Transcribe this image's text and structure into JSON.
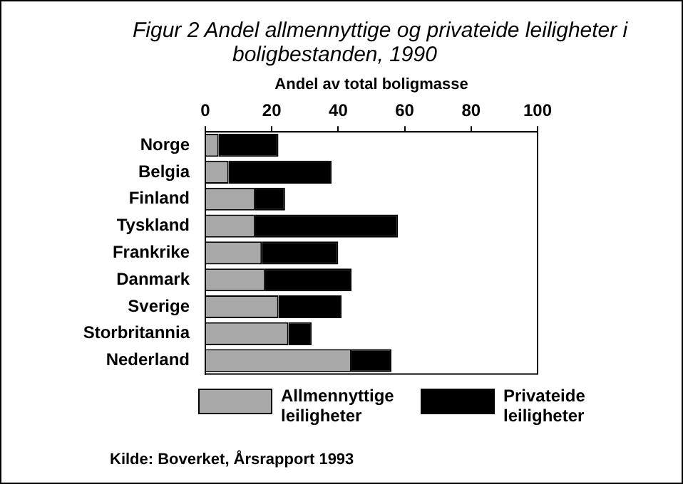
{
  "chart_data": {
    "type": "bar",
    "orientation": "horizontal",
    "stacked": true,
    "title": "Figur 2   Andel allmennyttige og privateide leiligheter i boligbestanden, 1990",
    "xlabel": "Andel av total boligmasse",
    "categories": [
      "Norge",
      "Belgia",
      "Finland",
      "Tyskland",
      "Frankrike",
      "Danmark",
      "Sverige",
      "Storbritannia",
      "Nederland"
    ],
    "series": [
      {
        "name": "Allmennyttige leiligheter",
        "color": "#a8a8a8",
        "values": [
          4,
          7,
          15,
          15,
          17,
          18,
          22,
          25,
          44
        ]
      },
      {
        "name": "Privateide leiligheter",
        "color": "#000000",
        "values": [
          18,
          31,
          9,
          43,
          23,
          26,
          19,
          7,
          12
        ]
      }
    ],
    "xlim": [
      0,
      100
    ],
    "xticks": [
      0,
      20,
      40,
      60,
      80,
      100
    ],
    "grid": false,
    "legend": "bottom",
    "annotations": [
      "Kilde: Boverket, Årsrapport 1993"
    ]
  }
}
